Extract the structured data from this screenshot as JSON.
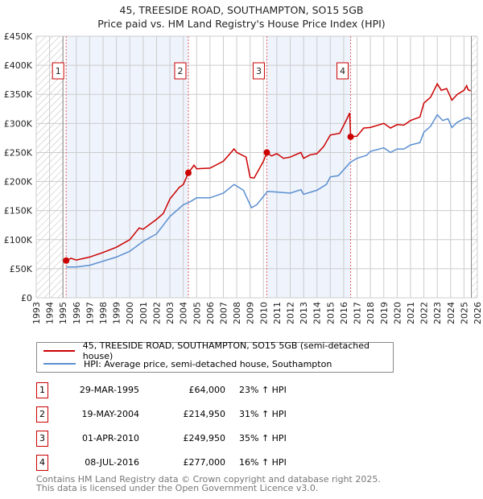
{
  "title": "45, TREESIDE ROAD, SOUTHAMPTON, SO15 5GB",
  "subtitle": "Price paid vs. HM Land Registry's House Price Index (HPI)",
  "colors": {
    "red": "#cc0000",
    "blue": "#5b8fd0",
    "shade": "#eef3fc"
  },
  "chart_data": {
    "type": "line",
    "xlim": [
      1993,
      2026
    ],
    "ylim": [
      0,
      450000
    ],
    "x_ticks": [
      "1993",
      "1994",
      "1995",
      "1996",
      "1997",
      "1998",
      "1999",
      "2000",
      "2001",
      "2002",
      "2003",
      "2004",
      "2005",
      "2006",
      "2007",
      "2008",
      "2009",
      "2010",
      "2011",
      "2012",
      "2013",
      "2014",
      "2015",
      "2016",
      "2017",
      "2018",
      "2019",
      "2020",
      "2021",
      "2022",
      "2023",
      "2024",
      "2025",
      "2026"
    ],
    "y_ticks": [
      {
        "v": 0,
        "label": "£0"
      },
      {
        "v": 50000,
        "label": "£50K"
      },
      {
        "v": 100000,
        "label": "£100K"
      },
      {
        "v": 150000,
        "label": "£150K"
      },
      {
        "v": 200000,
        "label": "£200K"
      },
      {
        "v": 250000,
        "label": "£250K"
      },
      {
        "v": 300000,
        "label": "£300K"
      },
      {
        "v": 350000,
        "label": "£350K"
      },
      {
        "v": 400000,
        "label": "£400K"
      },
      {
        "v": 450000,
        "label": "£450K"
      }
    ],
    "grid": true,
    "shaded_periods": [
      [
        1995.24,
        2004.38
      ],
      [
        2010.25,
        2016.52
      ]
    ],
    "hatched_periods": [
      [
        1993,
        1995
      ],
      [
        2025.55,
        2026
      ]
    ],
    "series": [
      {
        "name": "45, TREESIDE ROAD, SOUTHAMPTON, SO15 5GB (semi-detached house)",
        "color": "#cc0000",
        "x": [
          1995.24,
          1995.6,
          1996,
          1997,
          1998,
          1999,
          2000,
          2000.7,
          2001,
          2002,
          2002.5,
          2003,
          2003.7,
          2004,
          2004.38,
          2004.8,
          2005,
          2006,
          2007,
          2007.8,
          2008,
          2008.7,
          2009,
          2009.3,
          2010,
          2010.25,
          2010.6,
          2011,
          2011.5,
          2012,
          2012.8,
          2013,
          2013.5,
          2014,
          2014.5,
          2015,
          2015.7,
          2016.2,
          2016.45,
          2016.52,
          2017,
          2017.5,
          2018,
          2019,
          2019.5,
          2020,
          2020.5,
          2021,
          2021.7,
          2022,
          2022.5,
          2023,
          2023.3,
          2023.7,
          2024.1,
          2024.5,
          2025,
          2025.2,
          2025.3,
          2025.5
        ],
        "y": [
          64000,
          68000,
          65000,
          70000,
          78000,
          87000,
          100000,
          120000,
          118000,
          135000,
          145000,
          170000,
          190000,
          195000,
          214950,
          228000,
          222000,
          223000,
          235000,
          256000,
          250000,
          242000,
          207000,
          206000,
          235000,
          249950,
          244000,
          248000,
          240000,
          242000,
          250000,
          240000,
          246000,
          248000,
          260000,
          280000,
          283000,
          306000,
          318000,
          277000,
          278000,
          292000,
          293000,
          300000,
          292000,
          298000,
          297000,
          305000,
          311000,
          335000,
          345000,
          368000,
          357000,
          360000,
          340000,
          350000,
          357000,
          365000,
          358000,
          356000
        ]
      },
      {
        "name": "HPI: Average price, semi-detached house, Southampton",
        "color": "#5b8fd0",
        "x": [
          1995.24,
          1996,
          1997,
          1998,
          1999,
          2000,
          2001,
          2002,
          2003,
          2004,
          2004.5,
          2005,
          2006,
          2007,
          2007.8,
          2008.5,
          2009.1,
          2009.5,
          2010.3,
          2011,
          2012,
          2012.8,
          2013,
          2014,
          2014.7,
          2015,
          2015.6,
          2016.5,
          2017,
          2017.7,
          2018,
          2019,
          2019.5,
          2020,
          2020.5,
          2021,
          2021.7,
          2022,
          2022.5,
          2023,
          2023.4,
          2023.8,
          2024.1,
          2024.5,
          2025,
          2025.3,
          2025.5
        ],
        "y": [
          53000,
          53000,
          56000,
          63000,
          70000,
          80000,
          97000,
          110000,
          140000,
          160000,
          165000,
          172000,
          172000,
          180000,
          195000,
          185000,
          155000,
          160000,
          183000,
          182000,
          180000,
          186000,
          178000,
          185000,
          195000,
          208000,
          210000,
          233000,
          240000,
          245000,
          252000,
          258000,
          250000,
          256000,
          256000,
          263000,
          267000,
          285000,
          295000,
          315000,
          305000,
          308000,
          293000,
          302000,
          308000,
          310000,
          306000
        ]
      }
    ],
    "markers": [
      {
        "label": "1",
        "x": 1995.24,
        "y": 64000
      },
      {
        "label": "2",
        "x": 2004.38,
        "y": 214950
      },
      {
        "label": "3",
        "x": 2010.25,
        "y": 249950
      },
      {
        "label": "4",
        "x": 2016.52,
        "y": 277000
      }
    ]
  },
  "legend": [
    {
      "label": "45, TREESIDE ROAD, SOUTHAMPTON, SO15 5GB (semi-detached house)"
    },
    {
      "label": "HPI: Average price, semi-detached house, Southampton"
    }
  ],
  "transactions": [
    {
      "n": "1",
      "date": "29-MAR-1995",
      "price": "£64,000",
      "hpi": "23% ↑ HPI"
    },
    {
      "n": "2",
      "date": "19-MAY-2004",
      "price": "£214,950",
      "hpi": "31% ↑ HPI"
    },
    {
      "n": "3",
      "date": "01-APR-2010",
      "price": "£249,950",
      "hpi": "35% ↑ HPI"
    },
    {
      "n": "4",
      "date": "08-JUL-2016",
      "price": "£277,000",
      "hpi": "16% ↑ HPI"
    }
  ],
  "footer": {
    "line1": "Contains HM Land Registry data © Crown copyright and database right 2025.",
    "line2": "This data is licensed under the Open Government Licence v3.0."
  }
}
